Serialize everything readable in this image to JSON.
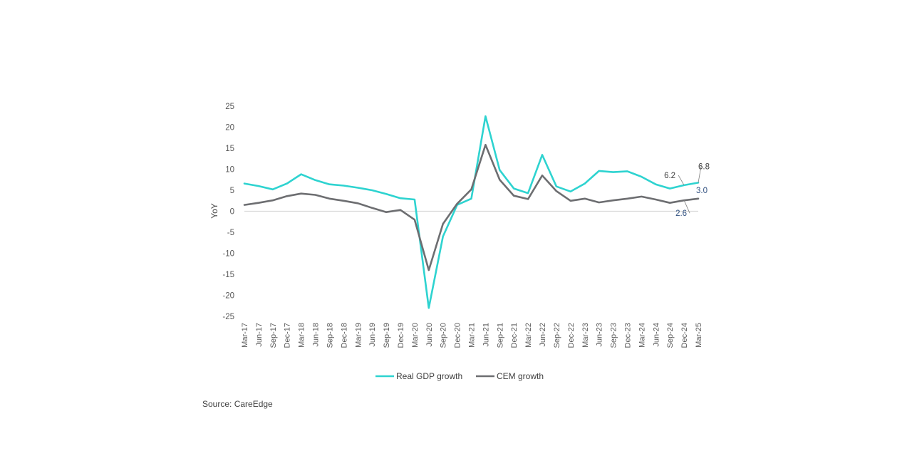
{
  "chart_data": {
    "type": "line",
    "title": "",
    "ylabel": "YoY",
    "xlabel": "",
    "ylim": [
      -25,
      25
    ],
    "yticks": [
      25,
      20,
      15,
      10,
      5,
      0,
      -5,
      -10,
      -15,
      -20,
      -25
    ],
    "grid": false,
    "legend_position": "bottom",
    "categories": [
      "Mar-17",
      "Jun-17",
      "Sep-17",
      "Dec-17",
      "Mar-18",
      "Jun-18",
      "Sep-18",
      "Dec-18",
      "Mar-19",
      "Jun-19",
      "Sep-19",
      "Dec-19",
      "Mar-20",
      "Jun-20",
      "Sep-20",
      "Dec-20",
      "Mar-21",
      "Jun-21",
      "Sep-21",
      "Dec-21",
      "Mar-22",
      "Jun-22",
      "Sep-22",
      "Dec-22",
      "Mar-23",
      "Jun-23",
      "Sep-23",
      "Dec-23",
      "Mar-24",
      "Jun-24",
      "Sep-24",
      "Dec-24",
      "Mar-25"
    ],
    "series": [
      {
        "name": "Real GDP growth",
        "color": "#2ed3d0",
        "values": [
          6.6,
          6.0,
          5.2,
          6.6,
          8.8,
          7.4,
          6.4,
          6.1,
          5.6,
          5.0,
          4.1,
          3.1,
          2.8,
          -23.0,
          -6.0,
          1.5,
          3.0,
          22.6,
          9.8,
          5.4,
          4.3,
          13.4,
          5.9,
          4.7,
          6.6,
          9.6,
          9.3,
          9.5,
          8.2,
          6.4,
          5.4,
          6.2,
          6.8
        ]
      },
      {
        "name": "CEM growth",
        "color": "#6d6e71",
        "values": [
          1.5,
          2.0,
          2.6,
          3.6,
          4.2,
          3.9,
          3.0,
          2.5,
          1.9,
          0.8,
          -0.2,
          0.3,
          -2.0,
          -14.0,
          -3.0,
          1.8,
          5.2,
          15.8,
          7.5,
          3.7,
          2.9,
          8.5,
          4.8,
          2.5,
          3.0,
          2.1,
          2.6,
          3.0,
          3.5,
          2.8,
          2.0,
          2.6,
          3.0
        ]
      }
    ],
    "annotations": [
      {
        "text": "6.2",
        "series": 0,
        "index": 31,
        "color": "#404040"
      },
      {
        "text": "6.8",
        "series": 0,
        "index": 32,
        "color": "#404040"
      },
      {
        "text": "3.0",
        "series": 1,
        "index": 32,
        "color": "#2f4f7f"
      },
      {
        "text": "2.6",
        "series": 1,
        "index": 31,
        "color": "#2f4f7f"
      }
    ]
  },
  "source": "Source: CareEdge"
}
